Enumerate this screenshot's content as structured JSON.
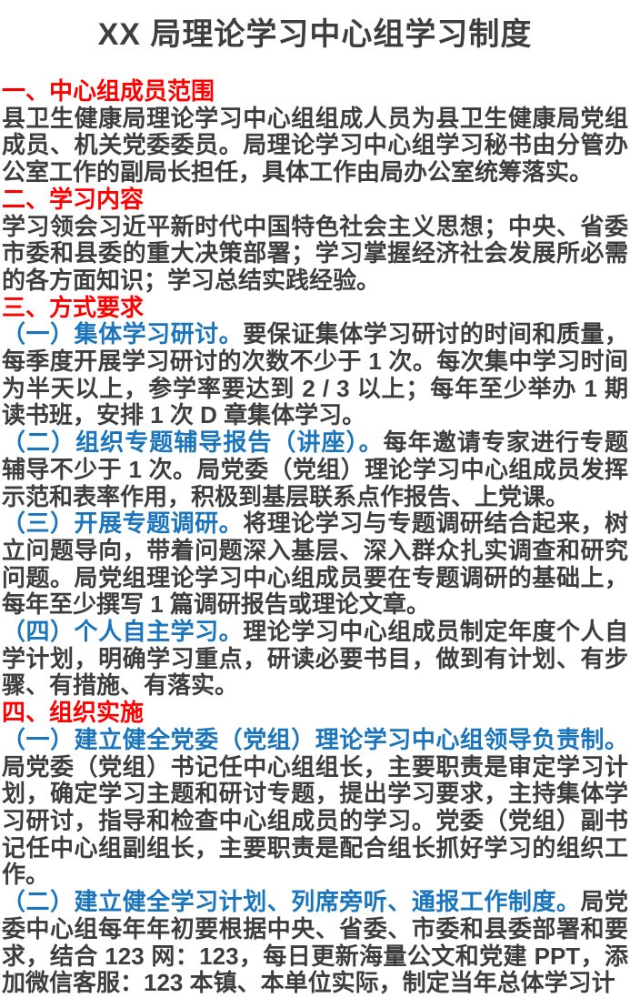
{
  "title": "XX 局理论学习中心组学习制度",
  "colors": {
    "section_heading_red": "#ff0000",
    "item_lead_blue": "#1b75bc",
    "body_text": "#3e3e3e",
    "background": "#ffffff"
  },
  "sections": [
    {
      "heading": "一、中心组成员范围",
      "items": [
        {
          "lead": "",
          "body": "县卫生健康局理论学习中心组组成人员为县卫生健康局党组成员、机关党委委员。局理论学习中心组学习秘书由分管办公室工作的副局长担任，具体工作由局办公室统筹落实。"
        }
      ]
    },
    {
      "heading": "二、学习内容",
      "items": [
        {
          "lead": "",
          "body": "学习领会习近平新时代中国特色社会主义思想；中央、省委市委和县委的重大决策部署；学习掌握经济社会发展所必需的各方面知识；学习总结实践经验。"
        }
      ]
    },
    {
      "heading": "三、方式要求",
      "items": [
        {
          "lead": "（一）集体学习研讨。",
          "body": "要保证集体学习研讨的时间和质量，每季度开展学习研讨的次数不少于 1 次。每次集中学习时间为半天以上，参学率要达到 2 / 3 以上；每年至少举办 1 期读书班，安排 1 次 D 章集体学习。"
        },
        {
          "lead": "（二）组织专题辅导报告（讲座）。",
          "body": "每年邀请专家进行专题辅导不少于 1 次。局党委（党组）理论学习中心组成员发挥示范和表率作用，积极到基层联系点作报告、上党课。"
        },
        {
          "lead": "（三）开展专题调研。",
          "body": "将理论学习与专题调研结合起来，树立问题导向，带着问题深入基层、深入群众扎实调查和研究问题。局党组理论学习中心组成员要在专题调研的基础上，每年至少撰写 1 篇调研报告或理论文章。"
        },
        {
          "lead": "（四）个人自主学习。",
          "body": "理论学习中心组成员制定年度个人自学计划，明确学习重点，研读必要书目，做到有计划、有步骤、有措施、有落实。"
        }
      ]
    },
    {
      "heading": "四、组织实施",
      "items": [
        {
          "lead": "（一）建立健全党委（党组）理论学习中心组领导负责制。",
          "body": "局党委（党组）书记任中心组组长，主要职责是审定学习计划，确定学习主题和研讨专题，提出学习要求，主持集体学习研讨，指导和检查中心组成员的学习。党委（党组）副书记任中心组副组长，主要职责是配合组长抓好学习的组织工作。"
        },
        {
          "lead": "（二）建立健全学习计划、列席旁听、通报工作制度。",
          "body": "局党委中心组每年年初要根据中央、省委、市委和县委部署和要求，结合 123 网：123，每日更新海量公文和党建 PPT，添加微信客服：123 本镇、本单位实际，制定当年总体学习计"
        }
      ]
    }
  ]
}
